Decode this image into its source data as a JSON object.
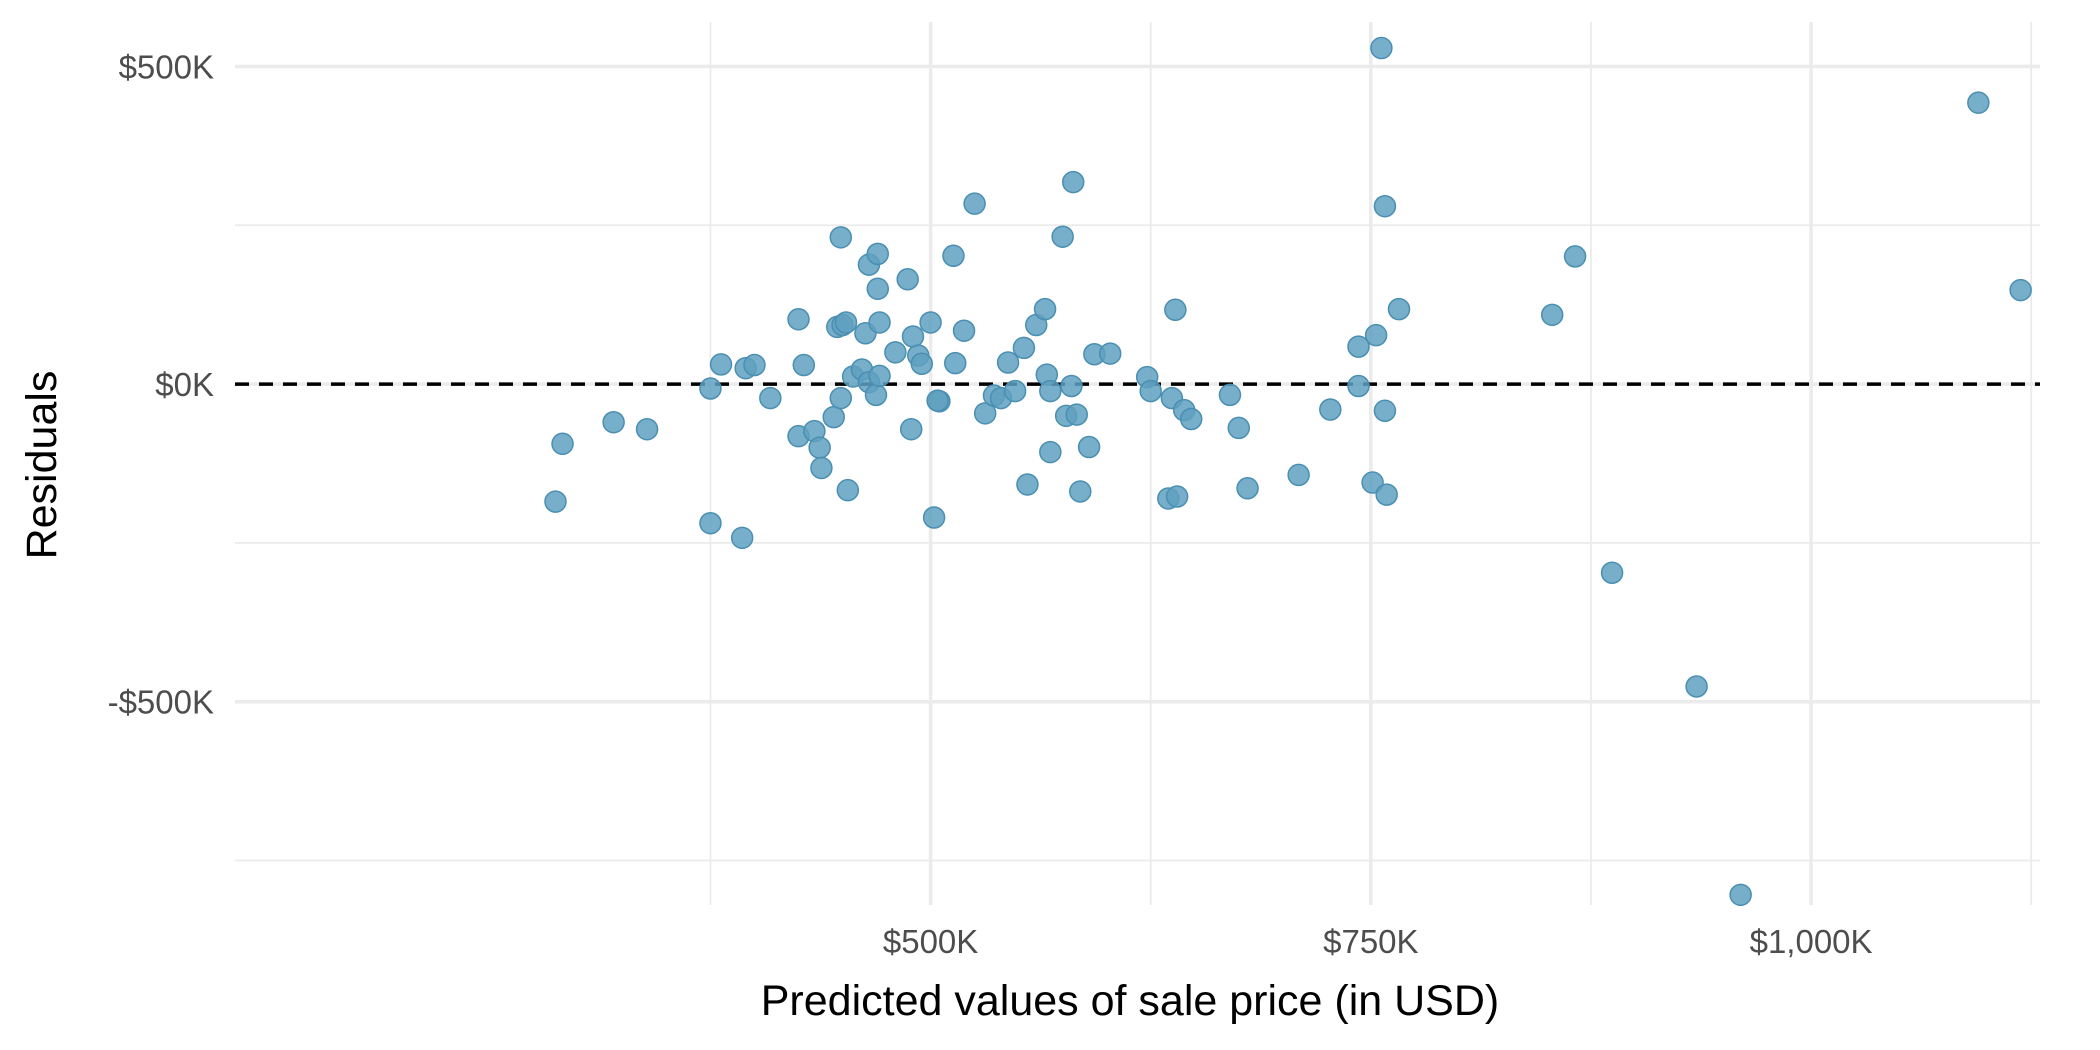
{
  "chart_data": {
    "type": "scatter",
    "xlabel": "Predicted values of sale price (in USD)",
    "ylabel": "Residuals",
    "xlim": [
      105000,
      1130000
    ],
    "ylim": [
      -820000,
      570000
    ],
    "x_ticks": [
      {
        "value": 500000,
        "label": "$500K"
      },
      {
        "value": 750000,
        "label": "$750K"
      },
      {
        "value": 1000000,
        "label": "$1,000K"
      }
    ],
    "x_minor_ticks": [
      375000,
      625000,
      875000,
      1125000
    ],
    "y_ticks": [
      {
        "value": 500000,
        "label": "$500K"
      },
      {
        "value": 0,
        "label": "$0K"
      },
      {
        "value": -500000,
        "label": "-$500K"
      }
    ],
    "y_minor_ticks": [
      250000,
      -250000,
      -750000
    ],
    "reference_line": {
      "y": 0,
      "style": "dashed"
    },
    "grid": true,
    "point_color": "#5fa0c0",
    "points": [
      [
        287000,
        -185000
      ],
      [
        291000,
        -94000
      ],
      [
        320000,
        -60000
      ],
      [
        339000,
        -71000
      ],
      [
        375000,
        -7000
      ],
      [
        375000,
        -219000
      ],
      [
        381000,
        31000
      ],
      [
        393000,
        -242000
      ],
      [
        395000,
        25000
      ],
      [
        400000,
        30000
      ],
      [
        409000,
        -22000
      ],
      [
        425000,
        102000
      ],
      [
        425000,
        -82000
      ],
      [
        428000,
        30000
      ],
      [
        434000,
        -74000
      ],
      [
        437000,
        -100000
      ],
      [
        438000,
        -132000
      ],
      [
        445000,
        -52000
      ],
      [
        447000,
        90000
      ],
      [
        449000,
        -22000
      ],
      [
        450000,
        93000
      ],
      [
        452000,
        97000
      ],
      [
        449000,
        231000
      ],
      [
        453000,
        -167000
      ],
      [
        456000,
        12000
      ],
      [
        461000,
        23000
      ],
      [
        463000,
        80000
      ],
      [
        465000,
        188000
      ],
      [
        465000,
        3000
      ],
      [
        469000,
        -17000
      ],
      [
        470000,
        205000
      ],
      [
        470000,
        150000
      ],
      [
        471000,
        97000
      ],
      [
        471000,
        13000
      ],
      [
        480000,
        50000
      ],
      [
        487000,
        165000
      ],
      [
        489000,
        -71000
      ],
      [
        490000,
        75000
      ],
      [
        493000,
        45000
      ],
      [
        495000,
        32000
      ],
      [
        500000,
        97000
      ],
      [
        502000,
        -210000
      ],
      [
        505000,
        -27000
      ],
      [
        504000,
        -26000
      ],
      [
        513000,
        202000
      ],
      [
        514000,
        33000
      ],
      [
        519000,
        84000
      ],
      [
        525000,
        284000
      ],
      [
        531000,
        -46000
      ],
      [
        536000,
        -18000
      ],
      [
        540000,
        -22000
      ],
      [
        544000,
        34000
      ],
      [
        548000,
        -11000
      ],
      [
        553000,
        57000
      ],
      [
        555000,
        -158000
      ],
      [
        560000,
        93000
      ],
      [
        565000,
        118000
      ],
      [
        566000,
        15000
      ],
      [
        568000,
        -11000
      ],
      [
        568000,
        -107000
      ],
      [
        575000,
        232000
      ],
      [
        577000,
        -50000
      ],
      [
        581000,
        318000
      ],
      [
        580000,
        -3000
      ],
      [
        583000,
        -48000
      ],
      [
        585000,
        -169000
      ],
      [
        590000,
        -99000
      ],
      [
        593000,
        47000
      ],
      [
        602000,
        48000
      ],
      [
        623000,
        11000
      ],
      [
        625000,
        -11000
      ],
      [
        635000,
        -180000
      ],
      [
        637000,
        -22000
      ],
      [
        639000,
        117000
      ],
      [
        640000,
        -177000
      ],
      [
        644000,
        -41000
      ],
      [
        648000,
        -55000
      ],
      [
        670000,
        -17000
      ],
      [
        675000,
        -69000
      ],
      [
        680000,
        -164000
      ],
      [
        709000,
        -143000
      ],
      [
        727000,
        -40000
      ],
      [
        743000,
        59000
      ],
      [
        743000,
        -3000
      ],
      [
        751000,
        -155000
      ],
      [
        753000,
        77000
      ],
      [
        756000,
        529000
      ],
      [
        758000,
        -42000
      ],
      [
        758000,
        280000
      ],
      [
        759000,
        -174000
      ],
      [
        766000,
        118000
      ],
      [
        853000,
        109000
      ],
      [
        866000,
        201000
      ],
      [
        887000,
        -297000
      ],
      [
        935000,
        -476000
      ],
      [
        960000,
        -804000
      ],
      [
        1095000,
        443000
      ],
      [
        1119000,
        148000
      ]
    ]
  }
}
